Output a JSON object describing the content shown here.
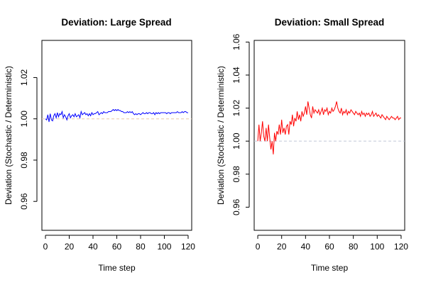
{
  "chart_data": [
    {
      "type": "line",
      "title": "Deviation: Large Spread",
      "xlabel": "Time step",
      "ylabel": "Deviation (Stochastic / Deterministic)",
      "xlim": [
        -3,
        123
      ],
      "ylim": [
        0.946,
        1.038
      ],
      "xticks": [
        0,
        20,
        40,
        60,
        80,
        100,
        120
      ],
      "yticks": [
        0.96,
        0.98,
        1.0,
        1.02
      ],
      "ytick_labels": [
        "0.96",
        "0.98",
        "1.00",
        "1.02"
      ],
      "reference_line": {
        "y": 1.0,
        "style": "dashed",
        "color": "#e8c8a8"
      },
      "series": [
        {
          "color": "#0000ff",
          "x": [
            0,
            1,
            2,
            3,
            4,
            5,
            6,
            7,
            8,
            9,
            10,
            11,
            12,
            13,
            14,
            15,
            16,
            17,
            18,
            19,
            20,
            21,
            22,
            23,
            24,
            25,
            26,
            27,
            28,
            29,
            30,
            31,
            32,
            33,
            34,
            35,
            36,
            37,
            38,
            39,
            40,
            41,
            42,
            43,
            44,
            45,
            46,
            47,
            48,
            49,
            50,
            51,
            52,
            53,
            54,
            55,
            56,
            57,
            58,
            59,
            60,
            61,
            62,
            63,
            64,
            65,
            66,
            67,
            68,
            69,
            70,
            71,
            72,
            73,
            74,
            75,
            76,
            77,
            78,
            79,
            80,
            81,
            82,
            83,
            84,
            85,
            86,
            87,
            88,
            89,
            90,
            91,
            92,
            93,
            94,
            95,
            96,
            97,
            98,
            99,
            100,
            101,
            102,
            103,
            104,
            105,
            106,
            107,
            108,
            109,
            110,
            111,
            112,
            113,
            114,
            115,
            116,
            117,
            118,
            119,
            120
          ],
          "values": [
            1.0,
            0.9995,
            1.002,
            0.9985,
            1.0025,
            0.9995,
            0.999,
            1.0015,
            1.0025,
            1.0005,
            1.003,
            1.001,
            1.0025,
            1.002,
            1.0035,
            1.0005,
            1.002,
            1.001,
            0.9995,
            1.0015,
            1.0025,
            1.0005,
            1.0015,
            1.002,
            1.001,
            1.0025,
            1.001,
            1.0015,
            1.002,
            1.0005,
            1.0035,
            1.002,
            1.0025,
            1.003,
            1.002,
            1.0025,
            1.0015,
            1.0025,
            1.0015,
            1.003,
            1.002,
            1.0025,
            1.0025,
            1.003,
            1.0035,
            1.002,
            1.0025,
            1.003,
            1.0025,
            1.0035,
            1.003,
            1.003,
            1.003,
            1.0035,
            1.0035,
            1.0035,
            1.004,
            1.0045,
            1.004,
            1.0045,
            1.004,
            1.0045,
            1.004,
            1.004,
            1.0035,
            1.0035,
            1.003,
            1.003,
            1.003,
            1.0035,
            1.003,
            1.0035,
            1.003,
            1.0035,
            1.0025,
            1.002,
            1.0025,
            1.002,
            1.0025,
            1.0025,
            1.002,
            1.0025,
            1.003,
            1.0025,
            1.0025,
            1.003,
            1.0025,
            1.003,
            1.003,
            1.0025,
            1.0025,
            1.003,
            1.002,
            1.003,
            1.0025,
            1.003,
            1.0025,
            1.003,
            1.003,
            1.003,
            1.003,
            1.003,
            1.0025,
            1.003,
            1.003,
            1.0025,
            1.003,
            1.003,
            1.003,
            1.003,
            1.003,
            1.0035,
            1.003,
            1.003,
            1.003,
            1.0035,
            1.003,
            1.0035,
            1.0035,
            1.003,
            1.003
          ]
        }
      ]
    },
    {
      "type": "line",
      "title": "Deviation: Small Spread",
      "xlabel": "Time step",
      "ylabel": "Deviation (Stochastic / Deterministic)",
      "xlim": [
        -3,
        123
      ],
      "ylim": [
        0.946,
        1.061
      ],
      "xticks": [
        0,
        20,
        40,
        60,
        80,
        100,
        120
      ],
      "yticks": [
        0.96,
        0.98,
        1.0,
        1.02,
        1.04,
        1.06
      ],
      "ytick_labels": [
        "0.96",
        "0.98",
        "1.00",
        "1.02",
        "1.04",
        "1.06"
      ],
      "reference_line": {
        "y": 1.0,
        "style": "dashed",
        "color": "#c0c8d8"
      },
      "series": [
        {
          "color": "#ff0000",
          "x": [
            0,
            1,
            2,
            3,
            4,
            5,
            6,
            7,
            8,
            9,
            10,
            11,
            12,
            13,
            14,
            15,
            16,
            17,
            18,
            19,
            20,
            21,
            22,
            23,
            24,
            25,
            26,
            27,
            28,
            29,
            30,
            31,
            32,
            33,
            34,
            35,
            36,
            37,
            38,
            39,
            40,
            41,
            42,
            43,
            44,
            45,
            46,
            47,
            48,
            49,
            50,
            51,
            52,
            53,
            54,
            55,
            56,
            57,
            58,
            59,
            60,
            61,
            62,
            63,
            64,
            65,
            66,
            67,
            68,
            69,
            70,
            71,
            72,
            73,
            74,
            75,
            76,
            77,
            78,
            79,
            80,
            81,
            82,
            83,
            84,
            85,
            86,
            87,
            88,
            89,
            90,
            91,
            92,
            93,
            94,
            95,
            96,
            97,
            98,
            99,
            100,
            101,
            102,
            103,
            104,
            105,
            106,
            107,
            108,
            109,
            110,
            111,
            112,
            113,
            114,
            115,
            116,
            117,
            118,
            119,
            120
          ],
          "values": [
            1.0,
            1.01,
            1.0,
            1.005,
            1.012,
            1.003,
            1.0,
            1.008,
            1.0,
            1.01,
            1.002,
            0.995,
            1.0,
            0.992,
            1.005,
            1.0,
            1.006,
            1.004,
            1.01,
            1.004,
            1.013,
            1.005,
            1.008,
            1.004,
            1.009,
            1.01,
            1.004,
            1.012,
            1.01,
            1.016,
            1.009,
            1.014,
            1.012,
            1.018,
            1.013,
            1.016,
            1.012,
            1.018,
            1.015,
            1.017,
            1.021,
            1.016,
            1.024,
            1.02,
            1.016,
            1.014,
            1.021,
            1.017,
            1.019,
            1.018,
            1.017,
            1.019,
            1.016,
            1.018,
            1.02,
            1.016,
            1.019,
            1.018,
            1.02,
            1.016,
            1.018,
            1.017,
            1.02,
            1.018,
            1.019,
            1.021,
            1.024,
            1.02,
            1.018,
            1.017,
            1.02,
            1.016,
            1.018,
            1.017,
            1.019,
            1.016,
            1.018,
            1.017,
            1.019,
            1.018,
            1.017,
            1.016,
            1.018,
            1.017,
            1.016,
            1.017,
            1.015,
            1.018,
            1.016,
            1.017,
            1.015,
            1.017,
            1.016,
            1.017,
            1.015,
            1.016,
            1.018,
            1.015,
            1.016,
            1.017,
            1.015,
            1.016,
            1.015,
            1.014,
            1.016,
            1.015,
            1.014,
            1.013,
            1.015,
            1.014,
            1.013,
            1.014,
            1.015,
            1.014,
            1.014,
            1.013,
            1.014,
            1.015,
            1.013,
            1.014,
            1.014
          ]
        }
      ]
    }
  ]
}
